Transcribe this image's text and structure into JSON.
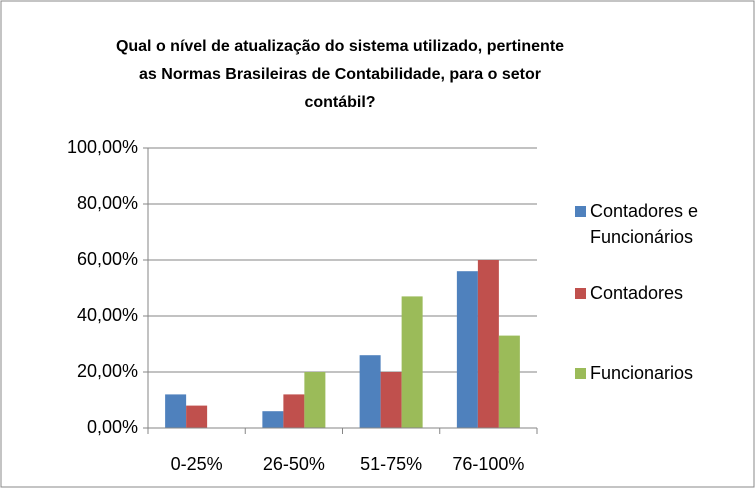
{
  "chart_data": {
    "type": "bar",
    "title": [
      "Qual o nível de atualização do sistema utilizado, pertinente",
      "as Normas Brasileiras de Contabilidade, para o setor",
      "contábil?"
    ],
    "categories": [
      "0-25%",
      "26-50%",
      "51-75%",
      "76-100%"
    ],
    "series": [
      {
        "name": "Contadores e Funcionários",
        "color": "#4f81bd",
        "values": [
          12,
          6,
          26,
          56
        ]
      },
      {
        "name": "Contadores",
        "color": "#c0504d",
        "values": [
          8,
          12,
          20,
          60
        ]
      },
      {
        "name": "Funcionarios",
        "color": "#9bbb59",
        "values": [
          0,
          20,
          47,
          33
        ]
      }
    ],
    "ylim": [
      0,
      100
    ],
    "yticks": [
      {
        "value": 0,
        "label": "0,00%"
      },
      {
        "value": 20,
        "label": "20,00%"
      },
      {
        "value": 40,
        "label": "40,00%"
      },
      {
        "value": 60,
        "label": "60,00%"
      },
      {
        "value": 80,
        "label": "80,00%"
      },
      {
        "value": 100,
        "label": "100,00%"
      }
    ],
    "grid": true,
    "legend": "right"
  }
}
